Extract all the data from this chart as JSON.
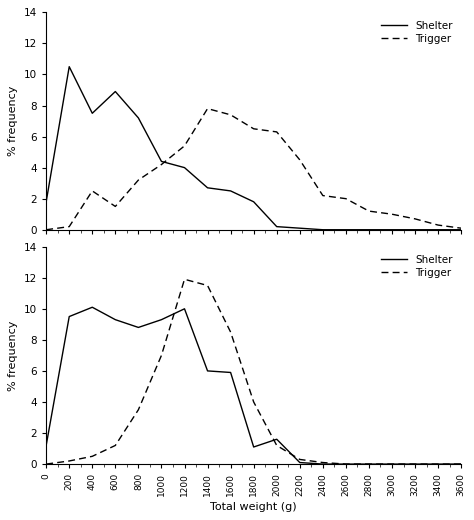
{
  "x_values": [
    0,
    200,
    400,
    600,
    800,
    1000,
    1200,
    1400,
    1600,
    1800,
    2000,
    2200,
    2400,
    2600,
    2800,
    3000,
    3200,
    3400,
    3600
  ],
  "top_shelter": [
    1.8,
    10.5,
    7.5,
    8.9,
    7.2,
    4.4,
    4.0,
    2.7,
    2.5,
    1.8,
    0.2,
    0.1,
    0.0,
    0.0,
    0.0,
    0.0,
    0.0,
    0.0,
    0.0
  ],
  "top_trigger": [
    0.0,
    0.2,
    2.5,
    1.5,
    3.2,
    4.2,
    5.4,
    7.8,
    7.4,
    6.5,
    6.3,
    4.5,
    2.2,
    2.0,
    1.2,
    1.0,
    0.7,
    0.3,
    0.1
  ],
  "bot_shelter": [
    1.2,
    9.5,
    10.1,
    9.3,
    8.8,
    9.3,
    10.0,
    6.0,
    5.9,
    1.1,
    1.6,
    0.1,
    0.0,
    0.0,
    0.0,
    0.0,
    0.0,
    0.0,
    0.0
  ],
  "bot_trigger": [
    0.0,
    0.2,
    0.5,
    1.2,
    3.5,
    7.0,
    11.9,
    11.5,
    8.5,
    4.0,
    1.2,
    0.3,
    0.1,
    0.0,
    0.0,
    0.0,
    0.0,
    0.0,
    0.0
  ],
  "ylabel": "% frequency",
  "xlabel": "Total weight (g)",
  "ylim": [
    0,
    14
  ],
  "yticks": [
    0,
    2,
    4,
    6,
    8,
    10,
    12,
    14
  ],
  "xlim": [
    0,
    3600
  ],
  "xticks": [
    0,
    200,
    400,
    600,
    800,
    1000,
    1200,
    1400,
    1600,
    1800,
    2000,
    2200,
    2400,
    2600,
    2800,
    3000,
    3200,
    3400,
    3600
  ],
  "legend_solid": "Shelter",
  "legend_dashed": "Trigger",
  "line_color": "#000000",
  "bg_color": "#ffffff"
}
